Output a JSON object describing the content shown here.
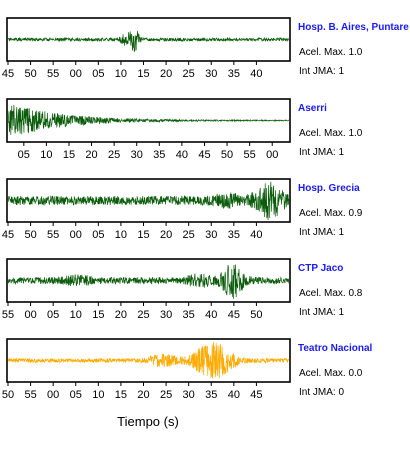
{
  "chart_data": [
    {
      "type": "line",
      "station": "Hosp. B. Aires, Puntare",
      "accel_label": "Acel. Max. 1.0",
      "int_label": "Int JMA: 1",
      "color": "#0a5c0a",
      "tick_labels": [
        "45",
        "50",
        "55",
        "00",
        "05",
        "10",
        "15",
        "20",
        "25",
        "30",
        "35",
        "40"
      ],
      "waveform": {
        "base": 0.08,
        "bursts": [
          {
            "x": 0.45,
            "amp": 0.55,
            "width": 0.015
          },
          {
            "x": 0.42,
            "amp": 0.25,
            "width": 0.02
          }
        ],
        "seed": 11
      }
    },
    {
      "type": "line",
      "station": "Aserri",
      "accel_label": "Acel. Max. 1.0",
      "int_label": "Int JMA: 1",
      "color": "#0a5c0a",
      "tick_labels": [
        "05",
        "10",
        "15",
        "20",
        "25",
        "30",
        "35",
        "40",
        "45",
        "50",
        "55",
        "00"
      ],
      "waveform": {
        "base": 0.02,
        "decay_from": 0.0,
        "decay_amp": 0.9,
        "decay_rate": 0.18,
        "seed": 23
      }
    },
    {
      "type": "line",
      "station": "Hosp. Grecia",
      "accel_label": "Acel. Max. 0.9",
      "int_label": "Int JMA: 1",
      "color": "#0a5c0a",
      "tick_labels": [
        "45",
        "50",
        "55",
        "00",
        "05",
        "10",
        "15",
        "20",
        "25",
        "30",
        "35",
        "40"
      ],
      "waveform": {
        "base": 0.22,
        "bursts": [
          {
            "x": 0.93,
            "amp": 0.75,
            "width": 0.05
          },
          {
            "x": 0.78,
            "amp": 0.2,
            "width": 0.05
          }
        ],
        "seed": 37
      }
    },
    {
      "type": "line",
      "station": "CTP Jaco",
      "accel_label": "Acel. Max. 0.8",
      "int_label": "Int JMA: 1",
      "color": "#0a5c0a",
      "tick_labels": [
        "55",
        "00",
        "05",
        "10",
        "15",
        "20",
        "25",
        "30",
        "35",
        "40",
        "45",
        "50"
      ],
      "waveform": {
        "base": 0.16,
        "bursts": [
          {
            "x": 0.8,
            "amp": 0.75,
            "width": 0.04
          },
          {
            "x": 0.68,
            "amp": 0.25,
            "width": 0.04
          },
          {
            "x": 0.25,
            "amp": 0.15,
            "width": 0.05
          }
        ],
        "seed": 51
      }
    },
    {
      "type": "line",
      "station": "Teatro Nacional",
      "accel_label": "Acel. Max. 0.0",
      "int_label": "Int JMA: 0",
      "color": "#ffaa00",
      "tick_labels": [
        "50",
        "55",
        "00",
        "05",
        "10",
        "15",
        "20",
        "25",
        "30",
        "35",
        "40",
        "45"
      ],
      "waveform": {
        "base": 0.1,
        "bursts": [
          {
            "x": 0.73,
            "amp": 0.85,
            "width": 0.07
          },
          {
            "x": 0.55,
            "amp": 0.25,
            "width": 0.05
          }
        ],
        "seed": 67
      }
    }
  ],
  "xlabel": "Tiempo (s)"
}
